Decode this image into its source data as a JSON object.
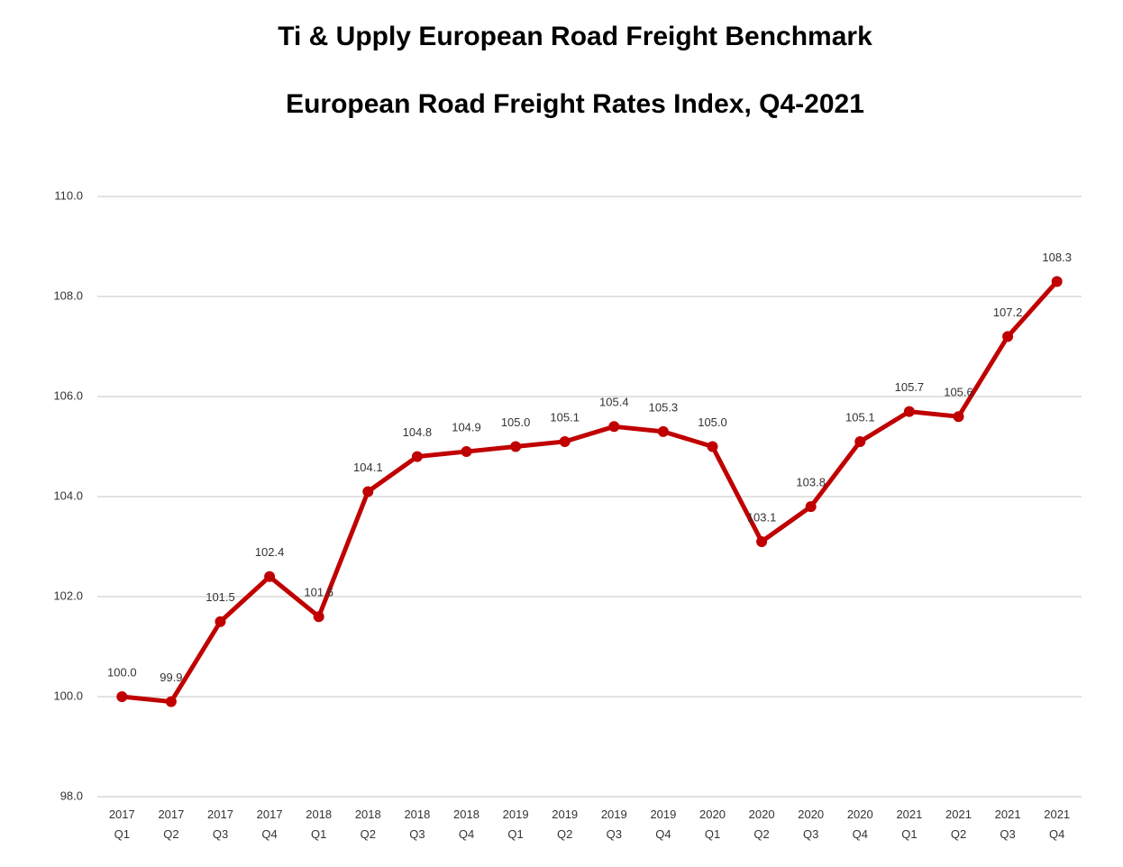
{
  "chart_data": {
    "type": "line",
    "title": "Ti & Upply European Road Freight Benchmark",
    "subtitle": "European Road Freight Rates Index, Q4-2021",
    "categories": [
      [
        "2017",
        "Q1"
      ],
      [
        "2017",
        "Q2"
      ],
      [
        "2017",
        "Q3"
      ],
      [
        "2017",
        "Q4"
      ],
      [
        "2018",
        "Q1"
      ],
      [
        "2018",
        "Q2"
      ],
      [
        "2018",
        "Q3"
      ],
      [
        "2018",
        "Q4"
      ],
      [
        "2019",
        "Q1"
      ],
      [
        "2019",
        "Q2"
      ],
      [
        "2019",
        "Q3"
      ],
      [
        "2019",
        "Q4"
      ],
      [
        "2020",
        "Q1"
      ],
      [
        "2020",
        "Q2"
      ],
      [
        "2020",
        "Q3"
      ],
      [
        "2020",
        "Q4"
      ],
      [
        "2021",
        "Q1"
      ],
      [
        "2021",
        "Q2"
      ],
      [
        "2021",
        "Q3"
      ],
      [
        "2021",
        "Q4"
      ]
    ],
    "values": [
      100.0,
      99.9,
      101.5,
      102.4,
      101.6,
      104.1,
      104.8,
      104.9,
      105.0,
      105.1,
      105.4,
      105.3,
      105.0,
      103.1,
      103.8,
      105.1,
      105.7,
      105.6,
      107.2,
      108.3
    ],
    "value_labels": [
      "100.0",
      "99.9",
      "101.5",
      "102.4",
      "101.6",
      "104.1",
      "104.8",
      "104.9",
      "105.0",
      "105.1",
      "105.4",
      "105.3",
      "105.0",
      "103.1",
      "103.8",
      "105.1",
      "105.7",
      "105.6",
      "107.2",
      "108.3"
    ],
    "color": "#c00000",
    "ylim": [
      98,
      110
    ],
    "yticks": [
      {
        "value": 98,
        "label": "98.0"
      },
      {
        "value": 100,
        "label": "100.0"
      },
      {
        "value": 102,
        "label": "102.0"
      },
      {
        "value": 104,
        "label": "104.0"
      },
      {
        "value": 106,
        "label": "106.0"
      },
      {
        "value": 108,
        "label": "108.0"
      },
      {
        "value": 110,
        "label": "110.0"
      }
    ],
    "grid": true
  }
}
